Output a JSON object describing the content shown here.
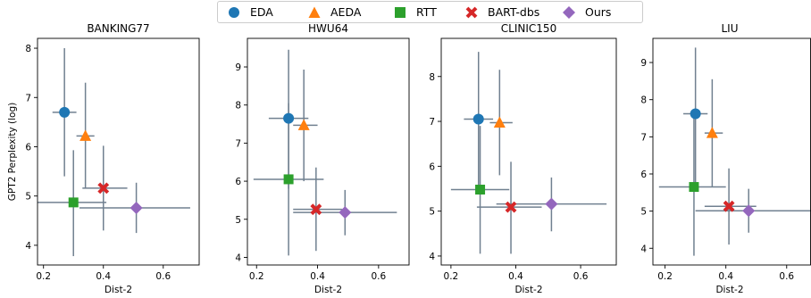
{
  "legend": [
    {
      "name": "EDA",
      "color": "#1f77b4",
      "marker": "circle"
    },
    {
      "name": "AEDA",
      "color": "#ff7f0e",
      "marker": "triangle"
    },
    {
      "name": "RTT",
      "color": "#2ca02c",
      "marker": "square"
    },
    {
      "name": "BART-dbs",
      "color": "#d62728",
      "marker": "x"
    },
    {
      "name": "Ours",
      "color": "#9467bd",
      "marker": "diamond"
    }
  ],
  "errorbar_color": "#708090",
  "chart_data": [
    {
      "type": "scatter",
      "title": "BANKING77",
      "xlabel": "Dist-2",
      "ylabel": "GPT2 Perplexity (log)",
      "xlim": [
        0.18,
        0.72
      ],
      "ylim": [
        3.6,
        8.2
      ],
      "xticks": [
        0.2,
        0.4,
        0.6
      ],
      "yticks": [
        4,
        5,
        6,
        7,
        8
      ],
      "xtick_labels": [
        "0.2",
        "0.4",
        "0.6"
      ],
      "ytick_labels": [
        "4",
        "5",
        "6",
        "7",
        "8"
      ],
      "points": [
        {
          "series": "EDA",
          "x": 0.27,
          "y": 6.7,
          "xerr": [
            0.23,
            0.31
          ],
          "yerr": [
            5.4,
            8.0
          ]
        },
        {
          "series": "AEDA",
          "x": 0.34,
          "y": 6.22,
          "xerr": [
            0.31,
            0.37
          ],
          "yerr": [
            5.15,
            7.3
          ]
        },
        {
          "series": "RTT",
          "x": 0.3,
          "y": 4.87,
          "xerr": [
            0.18,
            0.41
          ],
          "yerr": [
            3.78,
            5.93
          ]
        },
        {
          "series": "BART-dbs",
          "x": 0.4,
          "y": 5.16,
          "xerr": [
            0.33,
            0.48
          ],
          "yerr": [
            4.3,
            6.02
          ]
        },
        {
          "series": "Ours",
          "x": 0.51,
          "y": 4.76,
          "xerr": [
            0.32,
            0.69
          ],
          "yerr": [
            4.25,
            5.27
          ]
        }
      ]
    },
    {
      "type": "scatter",
      "title": "HWU64",
      "xlabel": "Dist-2",
      "ylabel": "",
      "xlim": [
        0.17,
        0.7
      ],
      "ylim": [
        3.8,
        9.75
      ],
      "xticks": [
        0.2,
        0.4,
        0.6
      ],
      "yticks": [
        4,
        5,
        6,
        7,
        8,
        9
      ],
      "xtick_labels": [
        "0.2",
        "0.4",
        "0.6"
      ],
      "ytick_labels": [
        "4",
        "5",
        "6",
        "7",
        "8",
        "9"
      ],
      "points": [
        {
          "series": "EDA",
          "x": 0.305,
          "y": 7.65,
          "xerr": [
            0.24,
            0.37
          ],
          "yerr": [
            5.8,
            9.45
          ]
        },
        {
          "series": "AEDA",
          "x": 0.355,
          "y": 7.47,
          "xerr": [
            0.32,
            0.4
          ],
          "yerr": [
            6.0,
            8.93
          ]
        },
        {
          "series": "RTT",
          "x": 0.305,
          "y": 6.05,
          "xerr": [
            0.19,
            0.42
          ],
          "yerr": [
            4.05,
            8.05
          ]
        },
        {
          "series": "BART-dbs",
          "x": 0.395,
          "y": 5.26,
          "xerr": [
            0.32,
            0.48
          ],
          "yerr": [
            4.17,
            6.36
          ]
        },
        {
          "series": "Ours",
          "x": 0.49,
          "y": 5.18,
          "xerr": [
            0.32,
            0.66
          ],
          "yerr": [
            4.58,
            5.77
          ]
        }
      ]
    },
    {
      "type": "scatter",
      "title": "CLINIC150",
      "xlabel": "Dist-2",
      "ylabel": "",
      "xlim": [
        0.17,
        0.71
      ],
      "ylim": [
        3.8,
        8.85
      ],
      "xticks": [
        0.2,
        0.4,
        0.6
      ],
      "yticks": [
        4,
        5,
        6,
        7,
        8
      ],
      "xtick_labels": [
        "0.2",
        "0.4",
        "0.6"
      ],
      "ytick_labels": [
        "4",
        "5",
        "6",
        "7",
        "8"
      ],
      "points": [
        {
          "series": "EDA",
          "x": 0.285,
          "y": 7.05,
          "xerr": [
            0.24,
            0.33
          ],
          "yerr": [
            5.55,
            8.55
          ]
        },
        {
          "series": "AEDA",
          "x": 0.35,
          "y": 6.97,
          "xerr": [
            0.32,
            0.39
          ],
          "yerr": [
            5.8,
            8.15
          ]
        },
        {
          "series": "RTT",
          "x": 0.29,
          "y": 5.48,
          "xerr": [
            0.2,
            0.38
          ],
          "yerr": [
            4.05,
            6.9
          ]
        },
        {
          "series": "BART-dbs",
          "x": 0.385,
          "y": 5.09,
          "xerr": [
            0.28,
            0.48
          ],
          "yerr": [
            4.05,
            6.1
          ]
        },
        {
          "series": "Ours",
          "x": 0.51,
          "y": 5.16,
          "xerr": [
            0.34,
            0.68
          ],
          "yerr": [
            4.55,
            5.75
          ]
        }
      ]
    },
    {
      "type": "scatter",
      "title": "LIU",
      "xlabel": "Dist-2",
      "ylabel": "",
      "xlim": [
        0.16,
        0.68
      ],
      "ylim": [
        3.55,
        9.65
      ],
      "xticks": [
        0.2,
        0.4,
        0.6
      ],
      "yticks": [
        4,
        5,
        6,
        7,
        8,
        9
      ],
      "xtick_labels": [
        "0.2",
        "0.4",
        "0.6"
      ],
      "ytick_labels": [
        "4",
        "5",
        "6",
        "7",
        "8",
        "9"
      ],
      "points": [
        {
          "series": "EDA",
          "x": 0.3,
          "y": 7.62,
          "xerr": [
            0.26,
            0.34
          ],
          "yerr": [
            5.6,
            9.4
          ]
        },
        {
          "series": "AEDA",
          "x": 0.355,
          "y": 7.1,
          "xerr": [
            0.33,
            0.39
          ],
          "yerr": [
            5.65,
            8.55
          ]
        },
        {
          "series": "RTT",
          "x": 0.295,
          "y": 5.65,
          "xerr": [
            0.18,
            0.4
          ],
          "yerr": [
            3.8,
            7.6
          ]
        },
        {
          "series": "BART-dbs",
          "x": 0.41,
          "y": 5.13,
          "xerr": [
            0.33,
            0.5
          ],
          "yerr": [
            4.1,
            6.15
          ]
        },
        {
          "series": "Ours",
          "x": 0.475,
          "y": 5.01,
          "xerr": [
            0.3,
            0.68
          ],
          "yerr": [
            4.42,
            5.6
          ]
        }
      ]
    }
  ]
}
